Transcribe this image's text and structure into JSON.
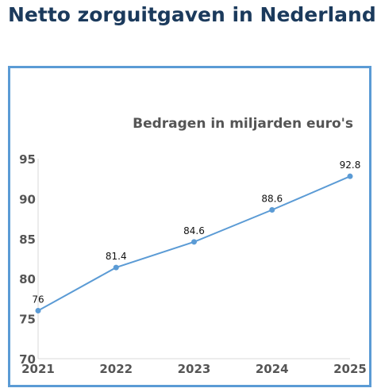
{
  "page": {
    "title": "Netto zorguitgaven in Nederland"
  },
  "chart_data": {
    "type": "line",
    "title": "",
    "subtitle": "Bedragen in miljarden euro's",
    "xlabel": "",
    "ylabel": "",
    "categories": [
      "2021",
      "2022",
      "2023",
      "2024",
      "2025"
    ],
    "series": [
      {
        "values": [
          76,
          81.4,
          84.6,
          88.6,
          92.8
        ],
        "color": "#5b9bd5"
      }
    ],
    "data_labels": [
      "76",
      "81.4",
      "84.6",
      "88.6",
      "92.8"
    ],
    "ylim": [
      70,
      95
    ],
    "yticks": [
      "70",
      "75",
      "80",
      "85",
      "90",
      "95"
    ],
    "grid": false,
    "legend": "none",
    "colors": {
      "frame": "#5b9bd5",
      "line": "#5b9bd5",
      "title": "#1b3a5c",
      "text": "#555555"
    }
  }
}
